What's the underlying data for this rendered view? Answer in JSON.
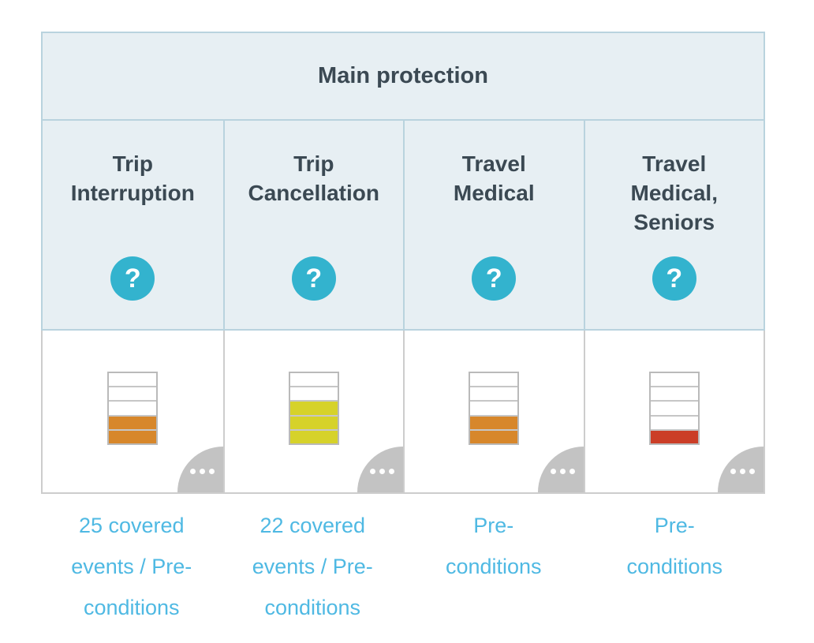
{
  "table": {
    "main_header": "Main protection",
    "help_glyph": "?",
    "columns": [
      {
        "title": "Trip\nInterruption",
        "rating": {
          "segments": 5,
          "filled": 2,
          "color": "#d7872b",
          "level": "medium-low"
        },
        "link": "25 covered\nevents / Pre-\nconditions"
      },
      {
        "title": "Trip\nCancellation",
        "rating": {
          "segments": 5,
          "filled": 3,
          "color": "#d6d22a",
          "level": "medium"
        },
        "link": "22 covered\nevents / Pre-\nconditions"
      },
      {
        "title": "Travel\nMedical",
        "rating": {
          "segments": 5,
          "filled": 2,
          "color": "#d7872b",
          "level": "medium-low"
        },
        "link": "Pre-\nconditions"
      },
      {
        "title": "Travel\nMedical,\nSeniors",
        "rating": {
          "segments": 5,
          "filled": 1,
          "color": "#cb3e27",
          "level": "low"
        },
        "link": "Pre-\nconditions"
      }
    ],
    "icons": {
      "help": "question-mark-circle",
      "more": "ellipsis"
    },
    "colors": {
      "header_bg": "#e7eff3",
      "header_border": "#b9d3de",
      "body_border": "#cdcdcd",
      "help_icon_bg": "#33b3ce",
      "link_text": "#4fb9e3",
      "title_text": "#3b4953",
      "corner_bg": "#c3c3c3"
    }
  }
}
